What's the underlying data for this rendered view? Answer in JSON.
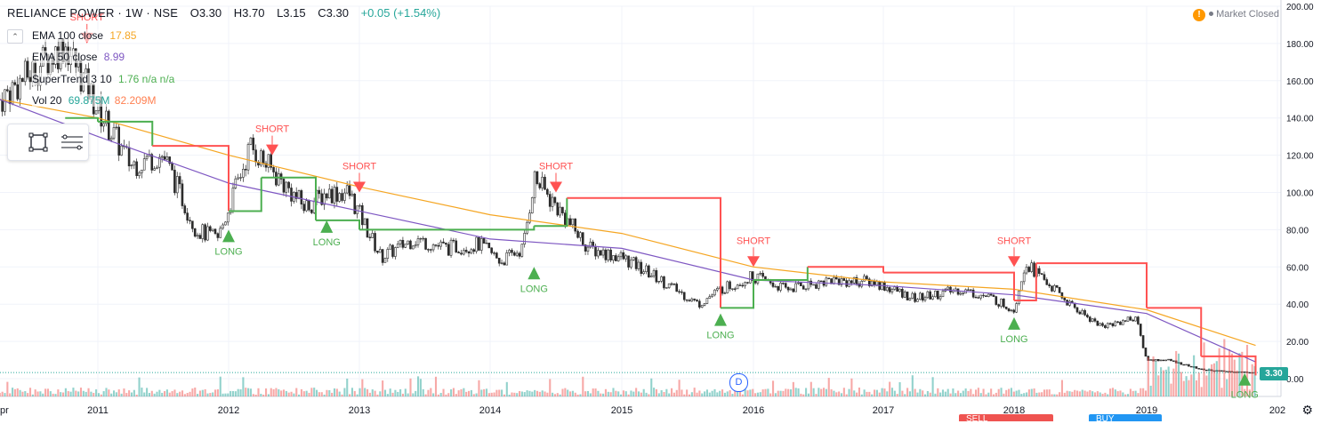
{
  "header": {
    "title": "RELIANCE POWER · 1W · NSE",
    "open": "O3.30",
    "high": "H3.70",
    "low": "L3.15",
    "close": "C3.30",
    "change": "+0.05 (+1.54%)"
  },
  "legend": [
    {
      "label": "EMA 100 close",
      "value": "17.85",
      "color": "#f5a623"
    },
    {
      "label": "EMA 50 close",
      "value": "8.99",
      "color": "#7e57c2"
    },
    {
      "label": "SuperTrend 3 10",
      "value": "1.76 n/a n/a",
      "color": "#4caf50"
    },
    {
      "label": "Vol 20",
      "value": "69.875M",
      "value2": "82.209M",
      "color": "#26a69a",
      "color2": "#ff7f50"
    }
  ],
  "status": {
    "market": "Market Closed",
    "warning_icon": "exclamation-icon"
  },
  "last_price": "3.30",
  "event_badge": "D",
  "bottom_tabs": [
    "SELL",
    "BUY"
  ],
  "colors": {
    "up": "#26a69a",
    "down": "#ef5350",
    "ema100": "#f5a623",
    "ema50": "#7e57c2",
    "supertrend_up": "#4caf50",
    "supertrend_down": "#ff5252"
  },
  "chart_data": {
    "type": "line",
    "title": "RELIANCE POWER · 1W · NSE",
    "xlabel": "",
    "ylabel": "",
    "x_ticks": [
      "pr",
      "2011",
      "2012",
      "2013",
      "2014",
      "2015",
      "2016",
      "2017",
      "2018",
      "2019",
      "202"
    ],
    "y_ticks": [
      "200.00",
      "180.00",
      "160.00",
      "140.00",
      "120.00",
      "100.00",
      "80.00",
      "60.00",
      "40.00",
      "20.00",
      "0.00"
    ],
    "ylim": [
      0,
      200
    ],
    "grid": true,
    "series": [
      {
        "name": "Price",
        "x": [
          "2010-04",
          "2010-07",
          "2010-10",
          "2011-01",
          "2011-04",
          "2011-07",
          "2011-10",
          "2011-12",
          "2012-03",
          "2012-06",
          "2012-08",
          "2012-10",
          "2012-12",
          "2013-03",
          "2013-06",
          "2013-09",
          "2013-12",
          "2014-02",
          "2014-04",
          "2014-05",
          "2014-08",
          "2014-10",
          "2015-01",
          "2015-04",
          "2015-08",
          "2015-10",
          "2016-01",
          "2016-04",
          "2016-08",
          "2016-12",
          "2017-04",
          "2017-08",
          "2017-11",
          "2018-01",
          "2018-02",
          "2018-06",
          "2018-09",
          "2018-12",
          "2019-01",
          "2019-03",
          "2019-06",
          "2019-08",
          "2019-11"
        ],
        "values": [
          150,
          165,
          180,
          145,
          115,
          120,
          80,
          75,
          125,
          105,
          92,
          100,
          100,
          65,
          75,
          70,
          72,
          63,
          70,
          108,
          85,
          70,
          65,
          55,
          40,
          48,
          55,
          48,
          53,
          52,
          43,
          48,
          43,
          37,
          63,
          40,
          28,
          33,
          10,
          10,
          5,
          4,
          3.3
        ]
      },
      {
        "name": "EMA 100 close",
        "x": [
          "2010-04",
          "2011-01",
          "2012-01",
          "2013-01",
          "2014-01",
          "2015-01",
          "2016-01",
          "2017-01",
          "2018-01",
          "2019-01",
          "2019-11"
        ],
        "values": [
          150,
          140,
          120,
          103,
          88,
          78,
          60,
          52,
          48,
          37,
          17.85
        ]
      },
      {
        "name": "EMA 50 close",
        "x": [
          "2010-04",
          "2011-01",
          "2012-01",
          "2013-01",
          "2014-01",
          "2015-01",
          "2016-01",
          "2017-01",
          "2018-01",
          "2019-01",
          "2019-11"
        ],
        "values": [
          150,
          130,
          105,
          90,
          75,
          70,
          53,
          50,
          45,
          35,
          8.99
        ]
      },
      {
        "name": "SuperTrend 3 10",
        "x": [
          "2010-10",
          "2011-01",
          "2011-06",
          "2012-01",
          "2012-04",
          "2012-09",
          "2013-01",
          "2014-05",
          "2014-08",
          "2015-10",
          "2016-01",
          "2016-06",
          "2017-01",
          "2018-01",
          "2018-03",
          "2019-01",
          "2019-06",
          "2019-11"
        ],
        "values": [
          140,
          138,
          125,
          90,
          108,
          85,
          80,
          82,
          97,
          38,
          53,
          60,
          57,
          42,
          62,
          38,
          12,
          1.76
        ]
      }
    ],
    "signals": [
      {
        "label": "SHORT",
        "date": "2010-12",
        "price": 180
      },
      {
        "label": "LONG",
        "date": "2012-01",
        "price": 80
      },
      {
        "label": "SHORT",
        "date": "2012-05",
        "price": 120
      },
      {
        "label": "LONG",
        "date": "2012-10",
        "price": 85
      },
      {
        "label": "SHORT",
        "date": "2013-01",
        "price": 100
      },
      {
        "label": "LONG",
        "date": "2014-05",
        "price": 60
      },
      {
        "label": "SHORT",
        "date": "2014-07",
        "price": 100
      },
      {
        "label": "LONG",
        "date": "2015-10",
        "price": 35
      },
      {
        "label": "SHORT",
        "date": "2016-01",
        "price": 60
      },
      {
        "label": "LONG",
        "date": "2018-01",
        "price": 33
      },
      {
        "label": "SHORT",
        "date": "2018-01",
        "price": 60
      },
      {
        "label": "LONG",
        "date": "2019-10",
        "price": 3
      }
    ]
  }
}
